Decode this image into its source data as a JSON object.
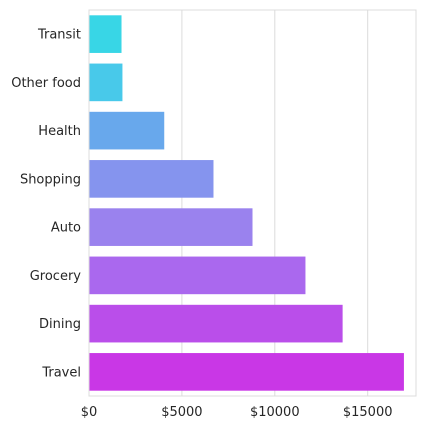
{
  "chart_data": {
    "type": "bar",
    "orientation": "horizontal",
    "categories": [
      "Transit",
      "Other food",
      "Health",
      "Shopping",
      "Auto",
      "Grocery",
      "Dining",
      "Travel"
    ],
    "values": [
      1750,
      1800,
      4050,
      6700,
      8800,
      11650,
      13650,
      16950
    ],
    "xlim": [
      0,
      17600
    ],
    "xticks": [
      0,
      5000,
      10000,
      15000
    ],
    "xtick_labels": [
      "$0",
      "$5000",
      "$10000",
      "$15000"
    ],
    "title": "",
    "xlabel": "",
    "ylabel": "",
    "grid": "vertical",
    "colors": [
      "#38d6e6",
      "#48c9ea",
      "#68a8ec",
      "#8594ee",
      "#9a82ee",
      "#aa68ee",
      "#ba4eea",
      "#c937e6"
    ]
  }
}
